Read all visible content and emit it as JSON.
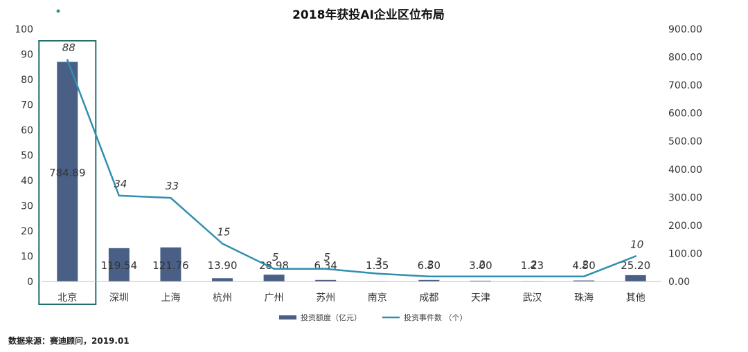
{
  "chart_data": {
    "type": "bar",
    "title": "2018年获投AI企业区位布局",
    "categories": [
      "北京",
      "深圳",
      "上海",
      "杭州",
      "广州",
      "苏州",
      "南京",
      "成都",
      "天津",
      "武汉",
      "珠海",
      "其他"
    ],
    "series": [
      {
        "name": "投资额度（亿元）",
        "type": "bar",
        "axis": "left",
        "values": [
          87,
          13.2,
          13.5,
          1.3,
          2.7,
          0.6,
          0.1,
          0.6,
          0.3,
          0.1,
          0.4,
          2.5
        ],
        "labels": [
          "784.89",
          "119.54",
          "121.76",
          "13.90",
          "28.98",
          "6.34",
          "1.35",
          "6.50",
          "3.00",
          "1.23",
          "4.50",
          "25.20"
        ],
        "color": "#4a5f85"
      },
      {
        "name": "投资事件数 （个）",
        "type": "line",
        "axis": "right",
        "values": [
          790,
          306,
          298,
          135,
          45,
          45,
          28,
          18,
          18,
          18,
          18,
          90
        ],
        "labels": [
          "88",
          "34",
          "33",
          "15",
          "5",
          "5",
          "3",
          "2",
          "2",
          "2",
          "2",
          "10"
        ],
        "color": "#2e8fb0"
      }
    ],
    "y_left": {
      "ylim": [
        0,
        100
      ],
      "ticks": [
        "0",
        "10",
        "20",
        "30",
        "40",
        "50",
        "60",
        "70",
        "80",
        "90",
        "100"
      ]
    },
    "y_right": {
      "ylim": [
        0,
        900
      ],
      "ticks": [
        "0.00",
        "100.00",
        "200.00",
        "300.00",
        "400.00",
        "500.00",
        "600.00",
        "700.00",
        "800.00",
        "900.00"
      ]
    },
    "grid": false,
    "legend": "bottom",
    "highlight_category": "北京",
    "highlight_color": "#1f6f6a"
  },
  "source": "数据来源：赛迪顾问，2019.01"
}
